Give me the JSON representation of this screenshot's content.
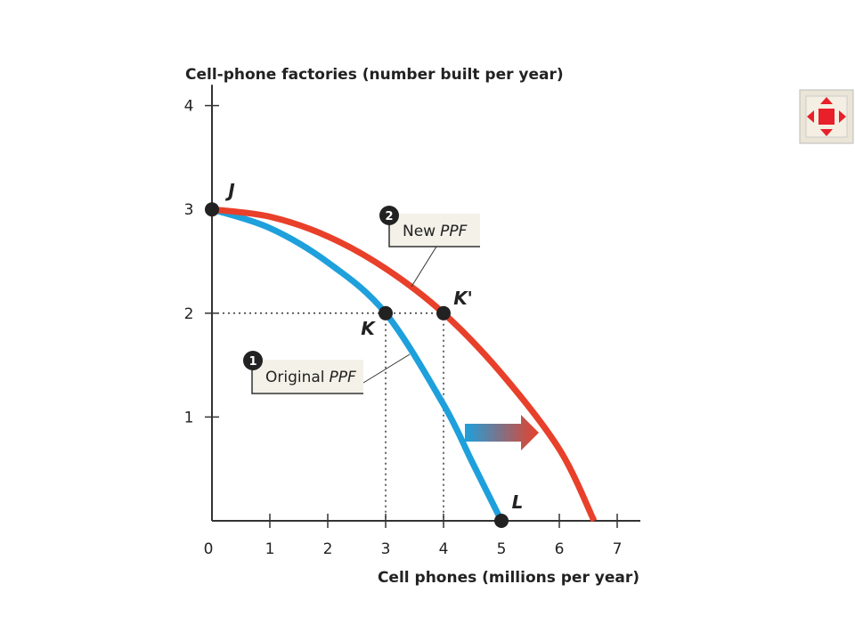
{
  "chart_data": {
    "type": "line",
    "y_label": "Cell-phone factories (number built per year)",
    "x_label": "Cell phones (millions per year)",
    "xlim": [
      0,
      7.4
    ],
    "ylim": [
      0,
      4.2
    ],
    "xticks": [
      0,
      1,
      2,
      3,
      4,
      5,
      6,
      7
    ],
    "yticks": [
      1,
      2,
      3,
      4
    ],
    "series": [
      {
        "name": "Original PPF",
        "color": "#1ea0dc",
        "x": [
          0,
          1,
          2,
          3,
          4,
          4.5,
          5
        ],
        "values": [
          3,
          2.82,
          2.49,
          2,
          1.12,
          0.56,
          0
        ]
      },
      {
        "name": "New PPF",
        "color": "#e8402a",
        "x": [
          0,
          1,
          2,
          3,
          4,
          5,
          6,
          6.6
        ],
        "values": [
          3,
          2.93,
          2.74,
          2.43,
          2,
          1.42,
          0.69,
          0
        ]
      }
    ],
    "points": [
      {
        "label": "J",
        "x": 0,
        "y": 3
      },
      {
        "label": "K",
        "x": 3,
        "y": 2
      },
      {
        "label": "K'",
        "x": 4,
        "y": 2
      },
      {
        "label": "L",
        "x": 5,
        "y": 0
      }
    ],
    "annotations": [
      {
        "number": "1",
        "text": "Original",
        "italic": "PPF"
      },
      {
        "number": "2",
        "text": "New",
        "italic": "PPF"
      }
    ]
  }
}
